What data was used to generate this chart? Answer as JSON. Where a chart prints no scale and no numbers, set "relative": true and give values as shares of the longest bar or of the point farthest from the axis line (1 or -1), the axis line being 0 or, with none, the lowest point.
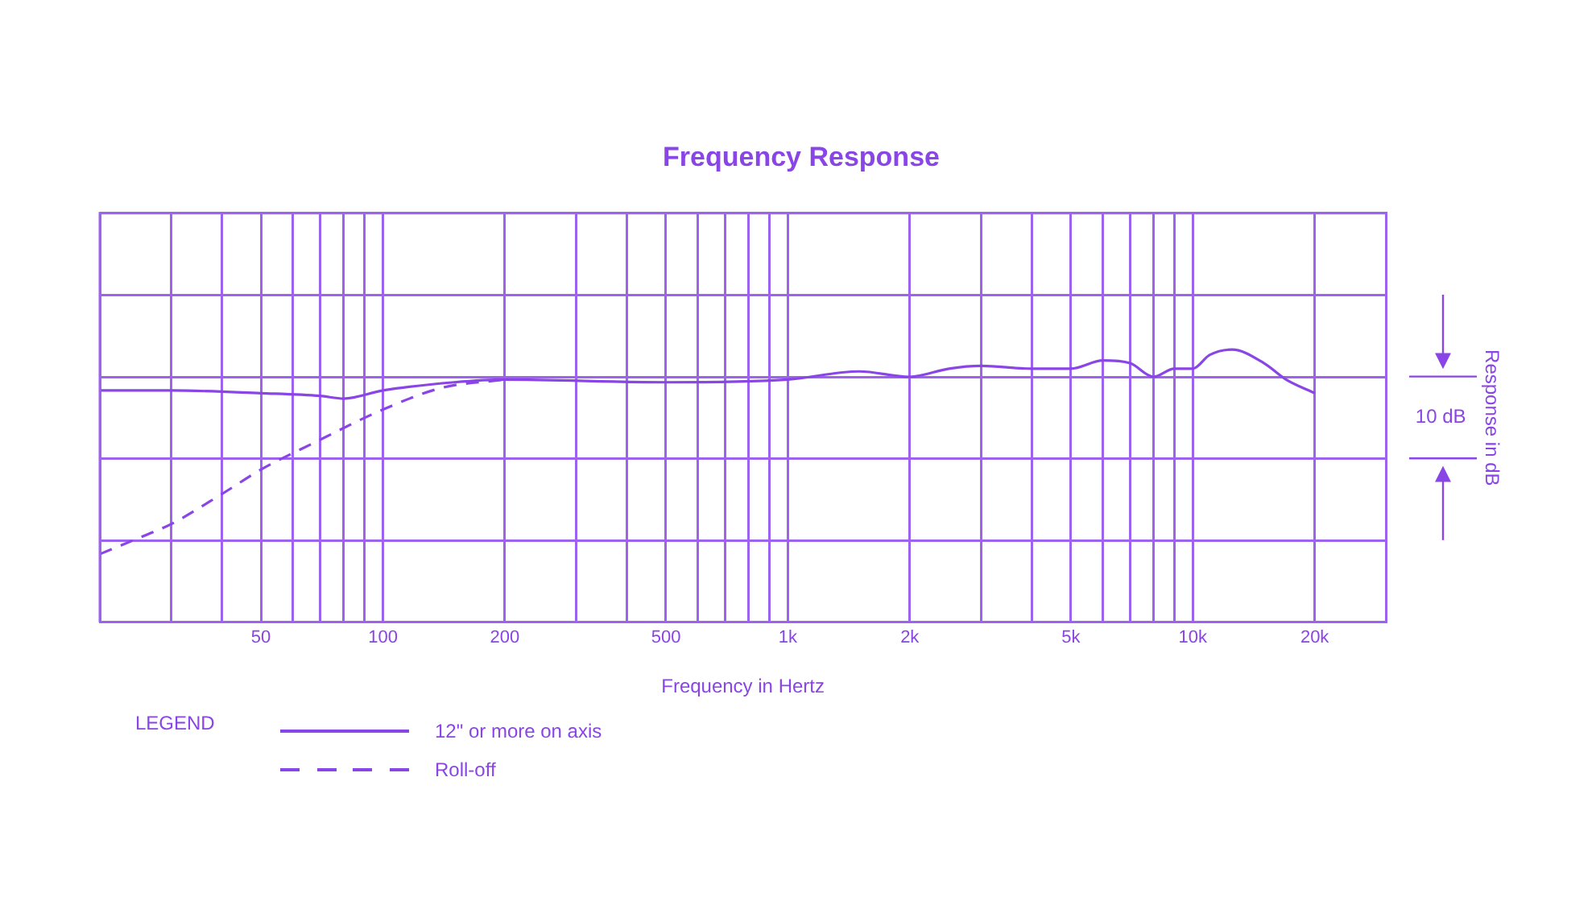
{
  "chart_data": {
    "type": "line",
    "title": "Frequency Response",
    "xlabel": "Frequency in Hertz",
    "ylabel": "Response in dB",
    "legend_title": "LEGEND",
    "annotations": [
      "10 dB"
    ],
    "relative": true,
    "log": "x",
    "grid": true,
    "legend": "bottom",
    "marker": "none",
    "xlim": [
      20,
      30000
    ],
    "xticks": [
      {
        "value": 20,
        "label": null
      },
      {
        "value": 30,
        "label": null
      },
      {
        "value": 40,
        "label": null
      },
      50,
      {
        "value": 60,
        "label": null
      },
      {
        "value": 70,
        "label": null
      },
      {
        "value": 80,
        "label": null
      },
      {
        "value": 90,
        "label": null
      },
      100,
      200,
      {
        "value": 300,
        "label": null
      },
      {
        "value": 400,
        "label": null
      },
      500,
      {
        "value": 600,
        "label": null
      },
      {
        "value": 700,
        "label": null
      },
      {
        "value": 800,
        "label": null
      },
      {
        "value": 900,
        "label": null
      },
      {
        "value": 1000,
        "label": "1k"
      },
      {
        "value": 2000,
        "label": "2k"
      },
      {
        "value": 3000,
        "label": null
      },
      {
        "value": 4000,
        "label": null
      },
      {
        "value": 5000,
        "label": "5k"
      },
      {
        "value": 6000,
        "label": null
      },
      {
        "value": 7000,
        "label": null
      },
      {
        "value": 8000,
        "label": null
      },
      {
        "value": 9000,
        "label": null
      },
      {
        "value": 10000,
        "label": "10k"
      },
      {
        "value": 20000,
        "label": "20k"
      }
    ],
    "series": [
      {
        "name": "12\" or more on axis",
        "color": "#8a45e6",
        "line_style": "solid",
        "x": [
          20,
          30,
          50,
          70,
          80,
          100,
          150,
          200,
          500,
          1000,
          1500,
          2000,
          2500,
          3000,
          4000,
          5000,
          6000,
          7000,
          8000,
          9000,
          10000,
          11000,
          12500,
          15000,
          17000,
          20000
        ],
        "values": [
          0.85,
          0.85,
          0.84,
          0.83,
          0.82,
          0.85,
          0.88,
          0.89,
          0.88,
          0.89,
          0.92,
          0.9,
          0.93,
          0.94,
          0.93,
          0.93,
          0.96,
          0.95,
          0.9,
          0.93,
          0.93,
          0.98,
          1,
          0.95,
          0.89,
          0.84
        ]
      },
      {
        "name": "Roll-off",
        "color": "#8a45e6",
        "line_style": "dashed",
        "x": [
          20,
          26,
          30,
          40,
          50,
          68,
          100,
          140,
          200
        ],
        "values": [
          0.25,
          0.32,
          0.36,
          0.47,
          0.56,
          0.66,
          0.78,
          0.86,
          0.89
        ]
      }
    ]
  }
}
